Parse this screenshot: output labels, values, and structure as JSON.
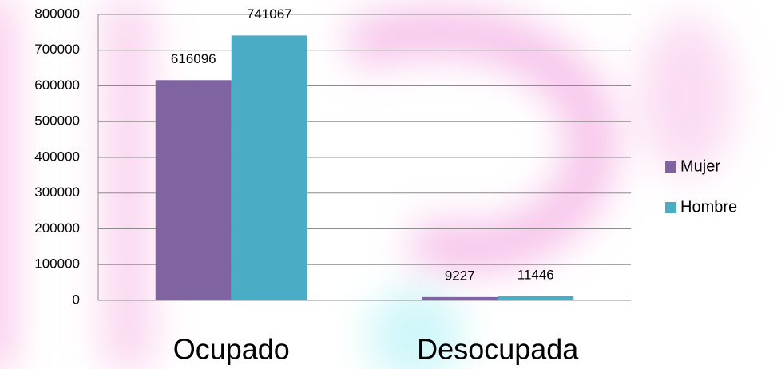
{
  "chart_data": {
    "type": "bar",
    "categories": [
      "Ocupado",
      "Desocupada"
    ],
    "series": [
      {
        "name": "Mujer",
        "color": "#8064a2",
        "values": [
          616096,
          9227
        ]
      },
      {
        "name": "Hombre",
        "color": "#4bacc6",
        "values": [
          741067,
          11446
        ]
      }
    ],
    "ylim": [
      0,
      800000
    ],
    "yticks": [
      0,
      100000,
      200000,
      300000,
      400000,
      500000,
      600000,
      700000,
      800000
    ],
    "grid": true,
    "legend": "right"
  }
}
